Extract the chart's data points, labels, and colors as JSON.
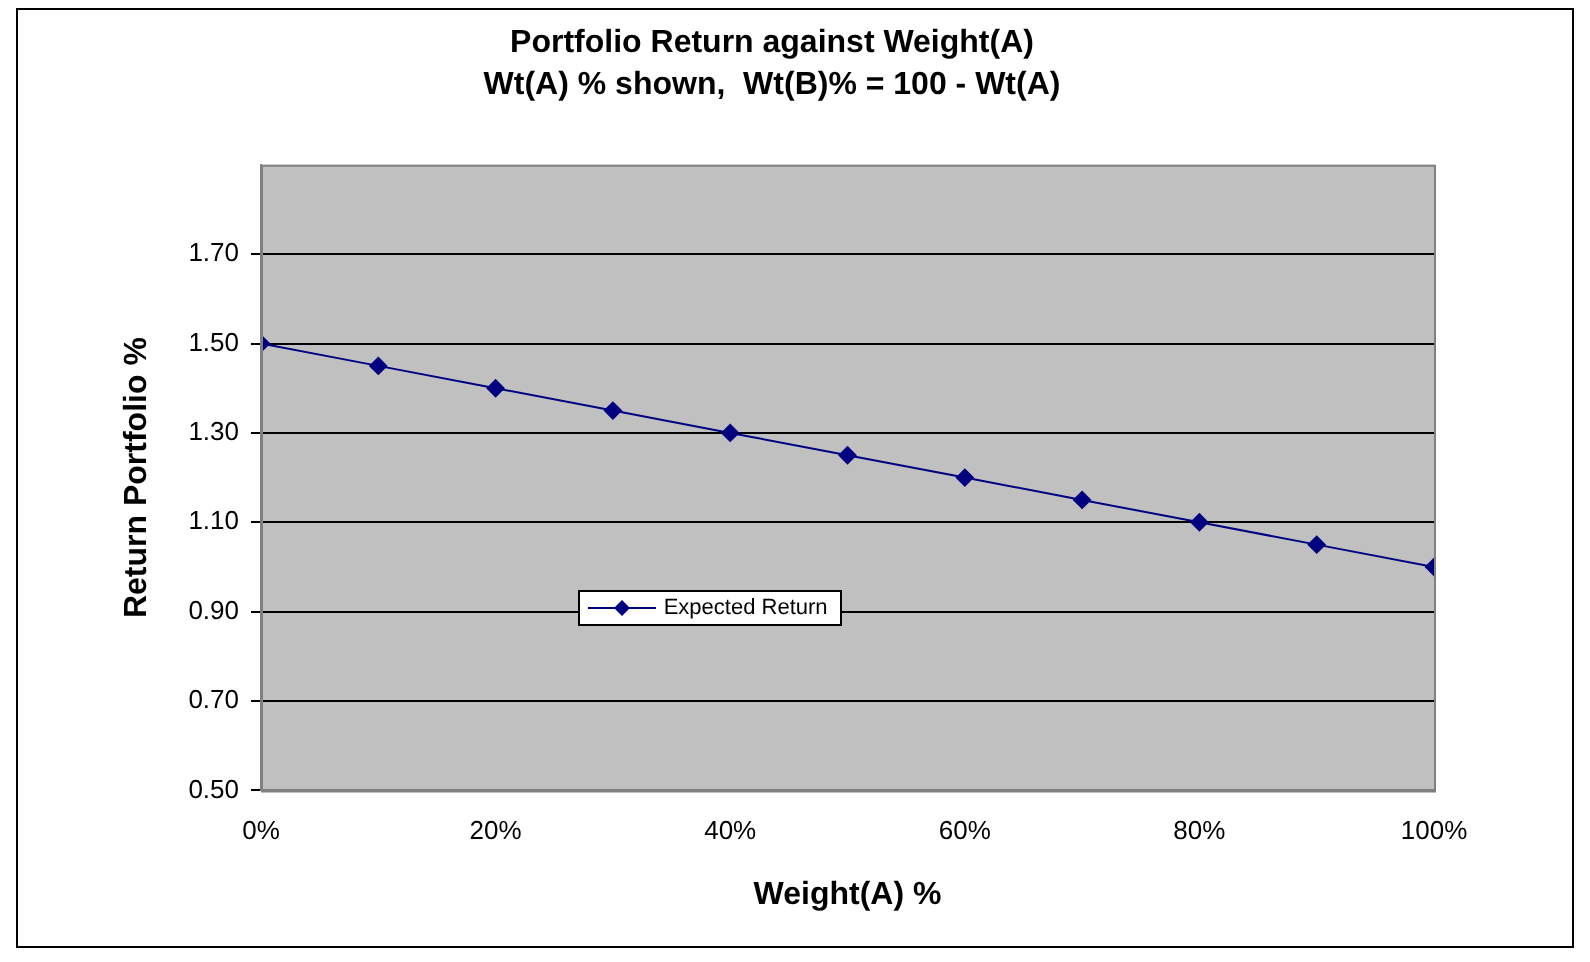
{
  "chart_data": {
    "type": "line",
    "title": "Portfolio Return against Weight(A)",
    "subtitle": "Wt(A) % shown,  Wt(B)% = 100 - Wt(A)",
    "xlabel": "Weight(A) %",
    "ylabel": "Return Portfolio %",
    "x": [
      0,
      10,
      20,
      30,
      40,
      50,
      60,
      70,
      80,
      90,
      100
    ],
    "series": [
      {
        "name": "Expected Return",
        "color": "#000080",
        "values": [
          1.5,
          1.45,
          1.4,
          1.35,
          1.3,
          1.25,
          1.2,
          1.15,
          1.1,
          1.05,
          1.0
        ]
      }
    ],
    "xlim": [
      0,
      100
    ],
    "xticks": [
      {
        "value": 0,
        "label": "0%"
      },
      {
        "value": 20,
        "label": "20%"
      },
      {
        "value": 40,
        "label": "40%"
      },
      {
        "value": 60,
        "label": "60%"
      },
      {
        "value": 80,
        "label": "80%"
      },
      {
        "value": 100,
        "label": "100%"
      }
    ],
    "ylim": [
      0.5,
      1.9
    ],
    "yticks": [
      {
        "value": 0.5,
        "label": "0.50"
      },
      {
        "value": 0.7,
        "label": "0.70"
      },
      {
        "value": 0.9,
        "label": "0.90"
      },
      {
        "value": 1.1,
        "label": "1.10"
      },
      {
        "value": 1.3,
        "label": "1.30"
      },
      {
        "value": 1.5,
        "label": "1.50"
      },
      {
        "value": 1.7,
        "label": "1.70"
      }
    ],
    "grid": "y",
    "legend": "center left",
    "marker": "diamond",
    "line_style": "solid"
  }
}
